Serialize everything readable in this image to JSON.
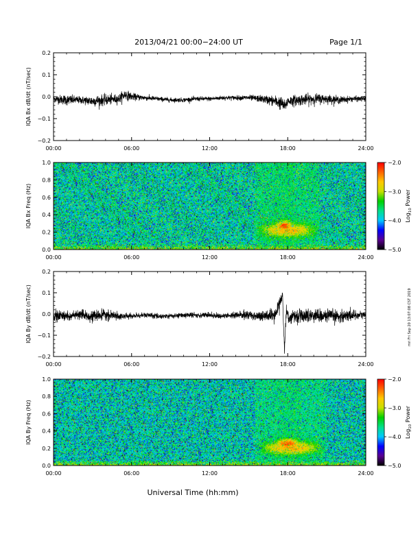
{
  "header": {
    "title": "2013/04/21  00:00−24:00 UT",
    "page": "Page 1/1"
  },
  "footer": {
    "xlabel": "Universal Time (hh:mm)",
    "side_stamp": "mri Fri Sep 20 13:07:08 CST 2019"
  },
  "colors": {
    "trace": "#000000",
    "axis": "#000000",
    "colormap": [
      "#000000",
      "#5a0091",
      "#0000ff",
      "#00c8ff",
      "#00e08c",
      "#00d000",
      "#c8e000",
      "#ffc800",
      "#ff6400",
      "#ff0000"
    ]
  },
  "chart_data": [
    {
      "type": "line",
      "ylabel": "IQA Bx dB/dt (nT/sec)",
      "xlim": [
        0,
        24
      ],
      "ylim": [
        -0.2,
        0.2
      ],
      "xtick_labels": [
        "00:00",
        "06:00",
        "12:00",
        "18:00",
        "24:00"
      ],
      "ytick_labels": [
        "0.2",
        "0.1",
        "0.0",
        "−0.1",
        "−0.2"
      ],
      "series": [
        {
          "x": [
            0,
            1,
            2,
            3,
            4,
            5,
            5.5,
            6,
            7,
            8,
            9,
            10,
            11,
            12,
            13,
            14,
            15,
            16,
            17,
            17.5,
            17.8,
            18,
            19,
            20,
            21,
            22,
            23,
            24
          ],
          "y": [
            -0.01,
            -0.015,
            -0.015,
            -0.02,
            -0.015,
            -0.01,
            0.01,
            0.0,
            -0.005,
            -0.01,
            -0.015,
            -0.015,
            -0.01,
            -0.01,
            -0.005,
            -0.005,
            -0.005,
            -0.01,
            -0.02,
            -0.03,
            -0.045,
            -0.02,
            -0.015,
            -0.01,
            -0.01,
            -0.015,
            -0.01,
            -0.01
          ],
          "noise": [
            0.008,
            0.012,
            0.008,
            0.012,
            0.012,
            0.01,
            0.012,
            0.008,
            0.006,
            0.005,
            0.005,
            0.005,
            0.005,
            0.005,
            0.005,
            0.005,
            0.006,
            0.008,
            0.012,
            0.015,
            0.012,
            0.012,
            0.012,
            0.012,
            0.01,
            0.008,
            0.006,
            0.006
          ]
        }
      ]
    },
    {
      "type": "heatmap",
      "ylabel": "IQA Bx Freq (Hz)",
      "xlim": [
        0,
        24
      ],
      "ylim": [
        0,
        1.0
      ],
      "xtick_labels": [
        "00:00",
        "06:00",
        "12:00",
        "18:00",
        "24:00"
      ],
      "ytick_labels": [
        "1.0",
        "0.8",
        "0.6",
        "0.4",
        "0.2",
        "0.0"
      ],
      "colorbar": {
        "label": "Log10 Power",
        "range": [
          -5.0,
          -2.0
        ],
        "tick_labels": [
          "−2.0",
          "−3.0",
          "−4.0",
          "−5.0"
        ]
      },
      "background_level": -3.7,
      "low_freq_level": -3.1,
      "features": [
        {
          "t_start": 15.5,
          "t_end": 20.5,
          "f_center": 0.22,
          "f_width": 0.08,
          "level": -2.6
        },
        {
          "t_start": 17.0,
          "t_end": 18.5,
          "f_center": 0.27,
          "f_width": 0.06,
          "level": -2.2
        }
      ]
    },
    {
      "type": "line",
      "ylabel": "IQA By dB/dt (nT/sec)",
      "xlim": [
        0,
        24
      ],
      "ylim": [
        -0.2,
        0.2
      ],
      "xtick_labels": [
        "00:00",
        "06:00",
        "12:00",
        "18:00",
        "24:00"
      ],
      "ytick_labels": [
        "0.2",
        "0.1",
        "0.0",
        "−0.1",
        "−0.2"
      ],
      "series": [
        {
          "x": [
            0,
            1,
            2,
            3,
            4,
            5,
            6,
            7,
            8,
            9,
            10,
            11,
            12,
            13,
            14,
            15,
            16,
            17,
            17.6,
            17.75,
            17.9,
            18.1,
            18.5,
            19,
            20,
            21,
            22,
            23,
            24
          ],
          "y": [
            -0.01,
            -0.01,
            -0.005,
            -0.01,
            -0.005,
            -0.01,
            -0.01,
            -0.005,
            -0.01,
            -0.01,
            -0.005,
            -0.005,
            -0.005,
            -0.01,
            -0.005,
            -0.005,
            -0.01,
            -0.01,
            0.09,
            -0.17,
            0.02,
            -0.02,
            -0.01,
            -0.01,
            -0.005,
            -0.01,
            -0.01,
            -0.005,
            -0.005
          ],
          "noise": [
            0.015,
            0.012,
            0.01,
            0.012,
            0.012,
            0.008,
            0.006,
            0.006,
            0.006,
            0.006,
            0.006,
            0.006,
            0.006,
            0.006,
            0.008,
            0.01,
            0.012,
            0.015,
            0.01,
            0.01,
            0.01,
            0.015,
            0.015,
            0.015,
            0.015,
            0.015,
            0.015,
            0.012,
            0.01
          ]
        }
      ]
    },
    {
      "type": "heatmap",
      "ylabel": "IQA By Freq (Hz)",
      "xlim": [
        0,
        24
      ],
      "ylim": [
        0,
        1.0
      ],
      "xtick_labels": [
        "00:00",
        "06:00",
        "12:00",
        "18:00",
        "24:00"
      ],
      "ytick_labels": [
        "1.0",
        "0.8",
        "0.6",
        "0.4",
        "0.2",
        "0.0"
      ],
      "colorbar": {
        "label": "Log10 Power",
        "range": [
          -5.0,
          -2.0
        ],
        "tick_labels": [
          "−2.0",
          "−3.0",
          "−4.0",
          "−5.0"
        ]
      },
      "background_level": -3.75,
      "low_freq_level": -3.1,
      "features": [
        {
          "t_start": 15.5,
          "t_end": 21.0,
          "f_center": 0.2,
          "f_width": 0.08,
          "level": -2.6
        },
        {
          "t_start": 17.0,
          "t_end": 19.0,
          "f_center": 0.25,
          "f_width": 0.06,
          "level": -2.2
        }
      ]
    }
  ]
}
